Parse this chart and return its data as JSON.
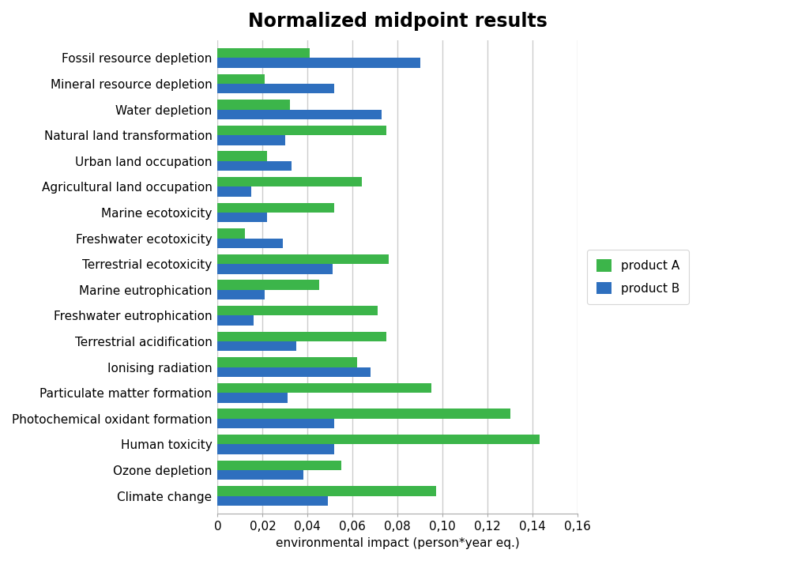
{
  "title": "Normalized midpoint results",
  "xlabel": "environmental impact (person*year eq.)",
  "categories": [
    "Climate change",
    "Ozone depletion",
    "Human toxicity",
    "Photochemical oxidant formation",
    "Particulate matter formation",
    "Ionising radiation",
    "Terrestrial acidification",
    "Freshwater eutrophication",
    "Marine eutrophication",
    "Terrestrial ecotoxicity",
    "Freshwater ecotoxicity",
    "Marine ecotoxicity",
    "Agricultural land occupation",
    "Urban land occupation",
    "Natural land transformation",
    "Water depletion",
    "Mineral resource depletion",
    "Fossil resource depletion"
  ],
  "product_A": [
    0.097,
    0.055,
    0.143,
    0.13,
    0.095,
    0.062,
    0.075,
    0.071,
    0.045,
    0.076,
    0.012,
    0.052,
    0.064,
    0.022,
    0.075,
    0.032,
    0.021,
    0.041
  ],
  "product_B": [
    0.049,
    0.038,
    0.052,
    0.052,
    0.031,
    0.068,
    0.035,
    0.016,
    0.021,
    0.051,
    0.029,
    0.022,
    0.015,
    0.033,
    0.03,
    0.073,
    0.052,
    0.09
  ],
  "color_A": "#3cb54a",
  "color_B": "#2e6fbe",
  "background_color": "#ffffff",
  "plot_bg_color": "#ffffff",
  "xlim": [
    0,
    0.16
  ],
  "xticks": [
    0,
    0.02,
    0.04,
    0.06,
    0.08,
    0.1,
    0.12,
    0.14,
    0.16
  ],
  "legend_labels": [
    "product A",
    "product B"
  ],
  "bar_height": 0.38,
  "title_fontsize": 17,
  "label_fontsize": 11,
  "tick_fontsize": 11
}
